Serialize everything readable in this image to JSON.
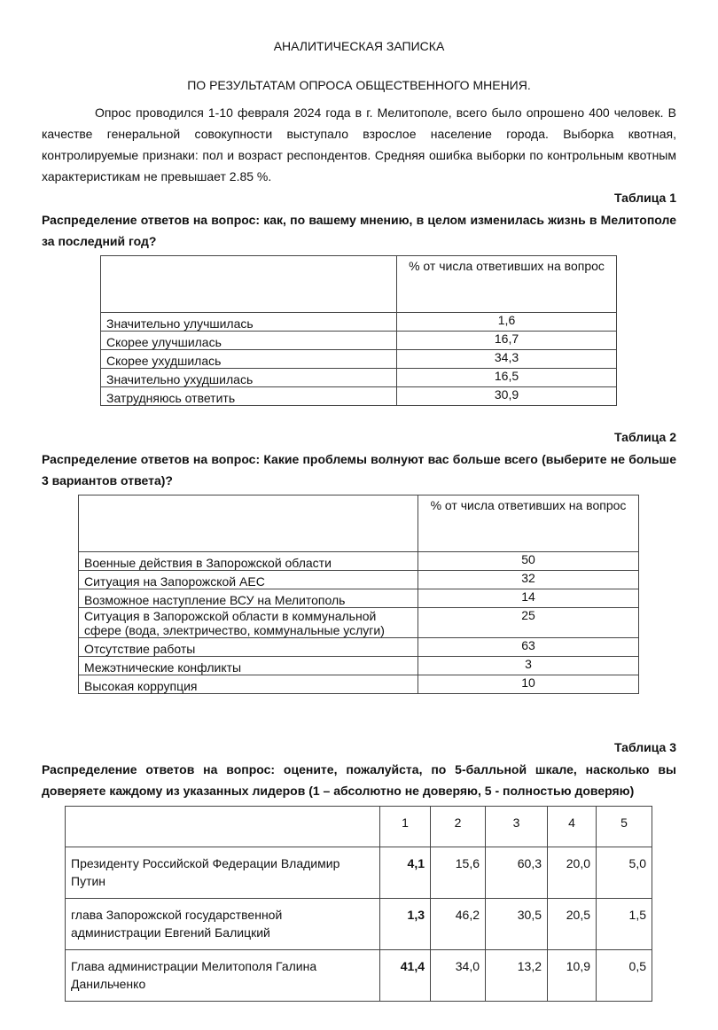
{
  "title_line1": "АНАЛИТИЧЕСКАЯ ЗАПИСКА",
  "title_line2": "ПО РЕЗУЛЬТАТАМ ОПРОСА ОБЩЕСТВЕННОГО МНЕНИЯ.",
  "intro": "Опрос проводился 1-10 февраля 2024 года в г. Мелитополе, всего было опрошено 400 человек. В качестве генеральной совокупности выступало взрослое население города. Выборка квотная, контролируемые признаки: пол и возраст респондентов. Средняя ошибка выборки по контрольным квотным характеристикам не превышает 2.85 %.",
  "table1": {
    "label": "Таблица 1",
    "heading": "Распределение ответов на вопрос: как, по вашему мнению, в целом изменилась жизнь в Мелитополе за последний год?",
    "column_header": "% от числа ответивших на вопрос",
    "rows": [
      {
        "answer": "Значительно улучшилась",
        "value": "1,6"
      },
      {
        "answer": "Скорее улучшилась",
        "value": "16,7"
      },
      {
        "answer": "Скорее ухудшилась",
        "value": "34,3"
      },
      {
        "answer": "Значительно ухудшилась",
        "value": "16,5"
      },
      {
        "answer": "Затрудняюсь ответить",
        "value": "30,9"
      }
    ]
  },
  "table2": {
    "label": "Таблица 2",
    "heading": "Распределение ответов на вопрос: Какие проблемы волнуют вас больше всего (выберите не больше 3 вариантов ответа)?",
    "column_header": "% от числа ответивших на вопрос",
    "rows": [
      {
        "answer": "Военные действия в Запорожской области",
        "value": "50"
      },
      {
        "answer": "Ситуация на Запорожской АЕС",
        "value": "32"
      },
      {
        "answer": "Возможное наступление ВСУ на Мелитополь",
        "value": "14"
      },
      {
        "answer": "Ситуация в Запорожской области в коммунальной сфере (вода, электричество, коммунальные услуги)",
        "value": "25"
      },
      {
        "answer": "Отсутствие работы",
        "value": "63"
      },
      {
        "answer": "Межэтнические конфликты",
        "value": "3"
      },
      {
        "answer": "Высокая коррупция",
        "value": "10"
      }
    ]
  },
  "table3": {
    "label": "Таблица 3",
    "heading": "Распределение ответов на вопрос: оцените, пожалуйста, по 5-балльной шкале, насколько вы доверяете каждому из указанных лидеров (1 – абсолютно не доверяю, 5 - полностью доверяю)",
    "columns": [
      "1",
      "2",
      "3",
      "4",
      "5"
    ],
    "rows": [
      {
        "leader": "Президенту Российской Федерации Владимир Путин",
        "values": [
          "4,1",
          "15,6",
          "60,3",
          "20,0",
          "5,0"
        ]
      },
      {
        "leader": "глава Запорожской государственной администрации Евгений Балицкий",
        "values": [
          "1,3",
          "46,2",
          "30,5",
          "20,5",
          "1,5"
        ]
      },
      {
        "leader": "Глава администрации Мелитополя Галина Данильченко",
        "values": [
          "41,4",
          "34,0",
          "13,2",
          "10,9",
          "0,5"
        ]
      }
    ]
  }
}
